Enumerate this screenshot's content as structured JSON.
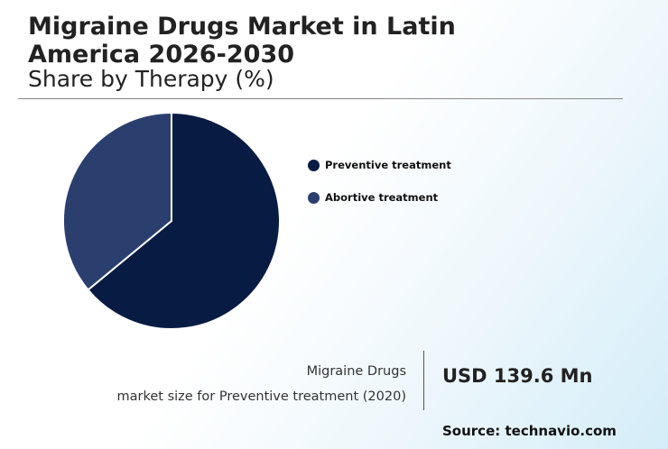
{
  "header": {
    "title": "Migraine Drugs Market in Latin America 2026-2030",
    "subtitle": "Share by Therapy (%)"
  },
  "chart_data": {
    "type": "pie",
    "title": "Migraine Drugs Market in Latin America 2026-2030",
    "subtitle": "Share by Therapy (%)",
    "slices": [
      {
        "label": "Preventive treatment",
        "value": 64,
        "color": "#081b43"
      },
      {
        "label": "Abortive treatment",
        "value": 36,
        "color": "#2b3f6f"
      }
    ],
    "legend_position": "right"
  },
  "stat": {
    "label_line1": "Migraine Drugs",
    "label_line2": "market size for Preventive treatment (2020)",
    "value": "USD 139.6 Mn"
  },
  "footer": {
    "source": "Source: technavio.com"
  }
}
